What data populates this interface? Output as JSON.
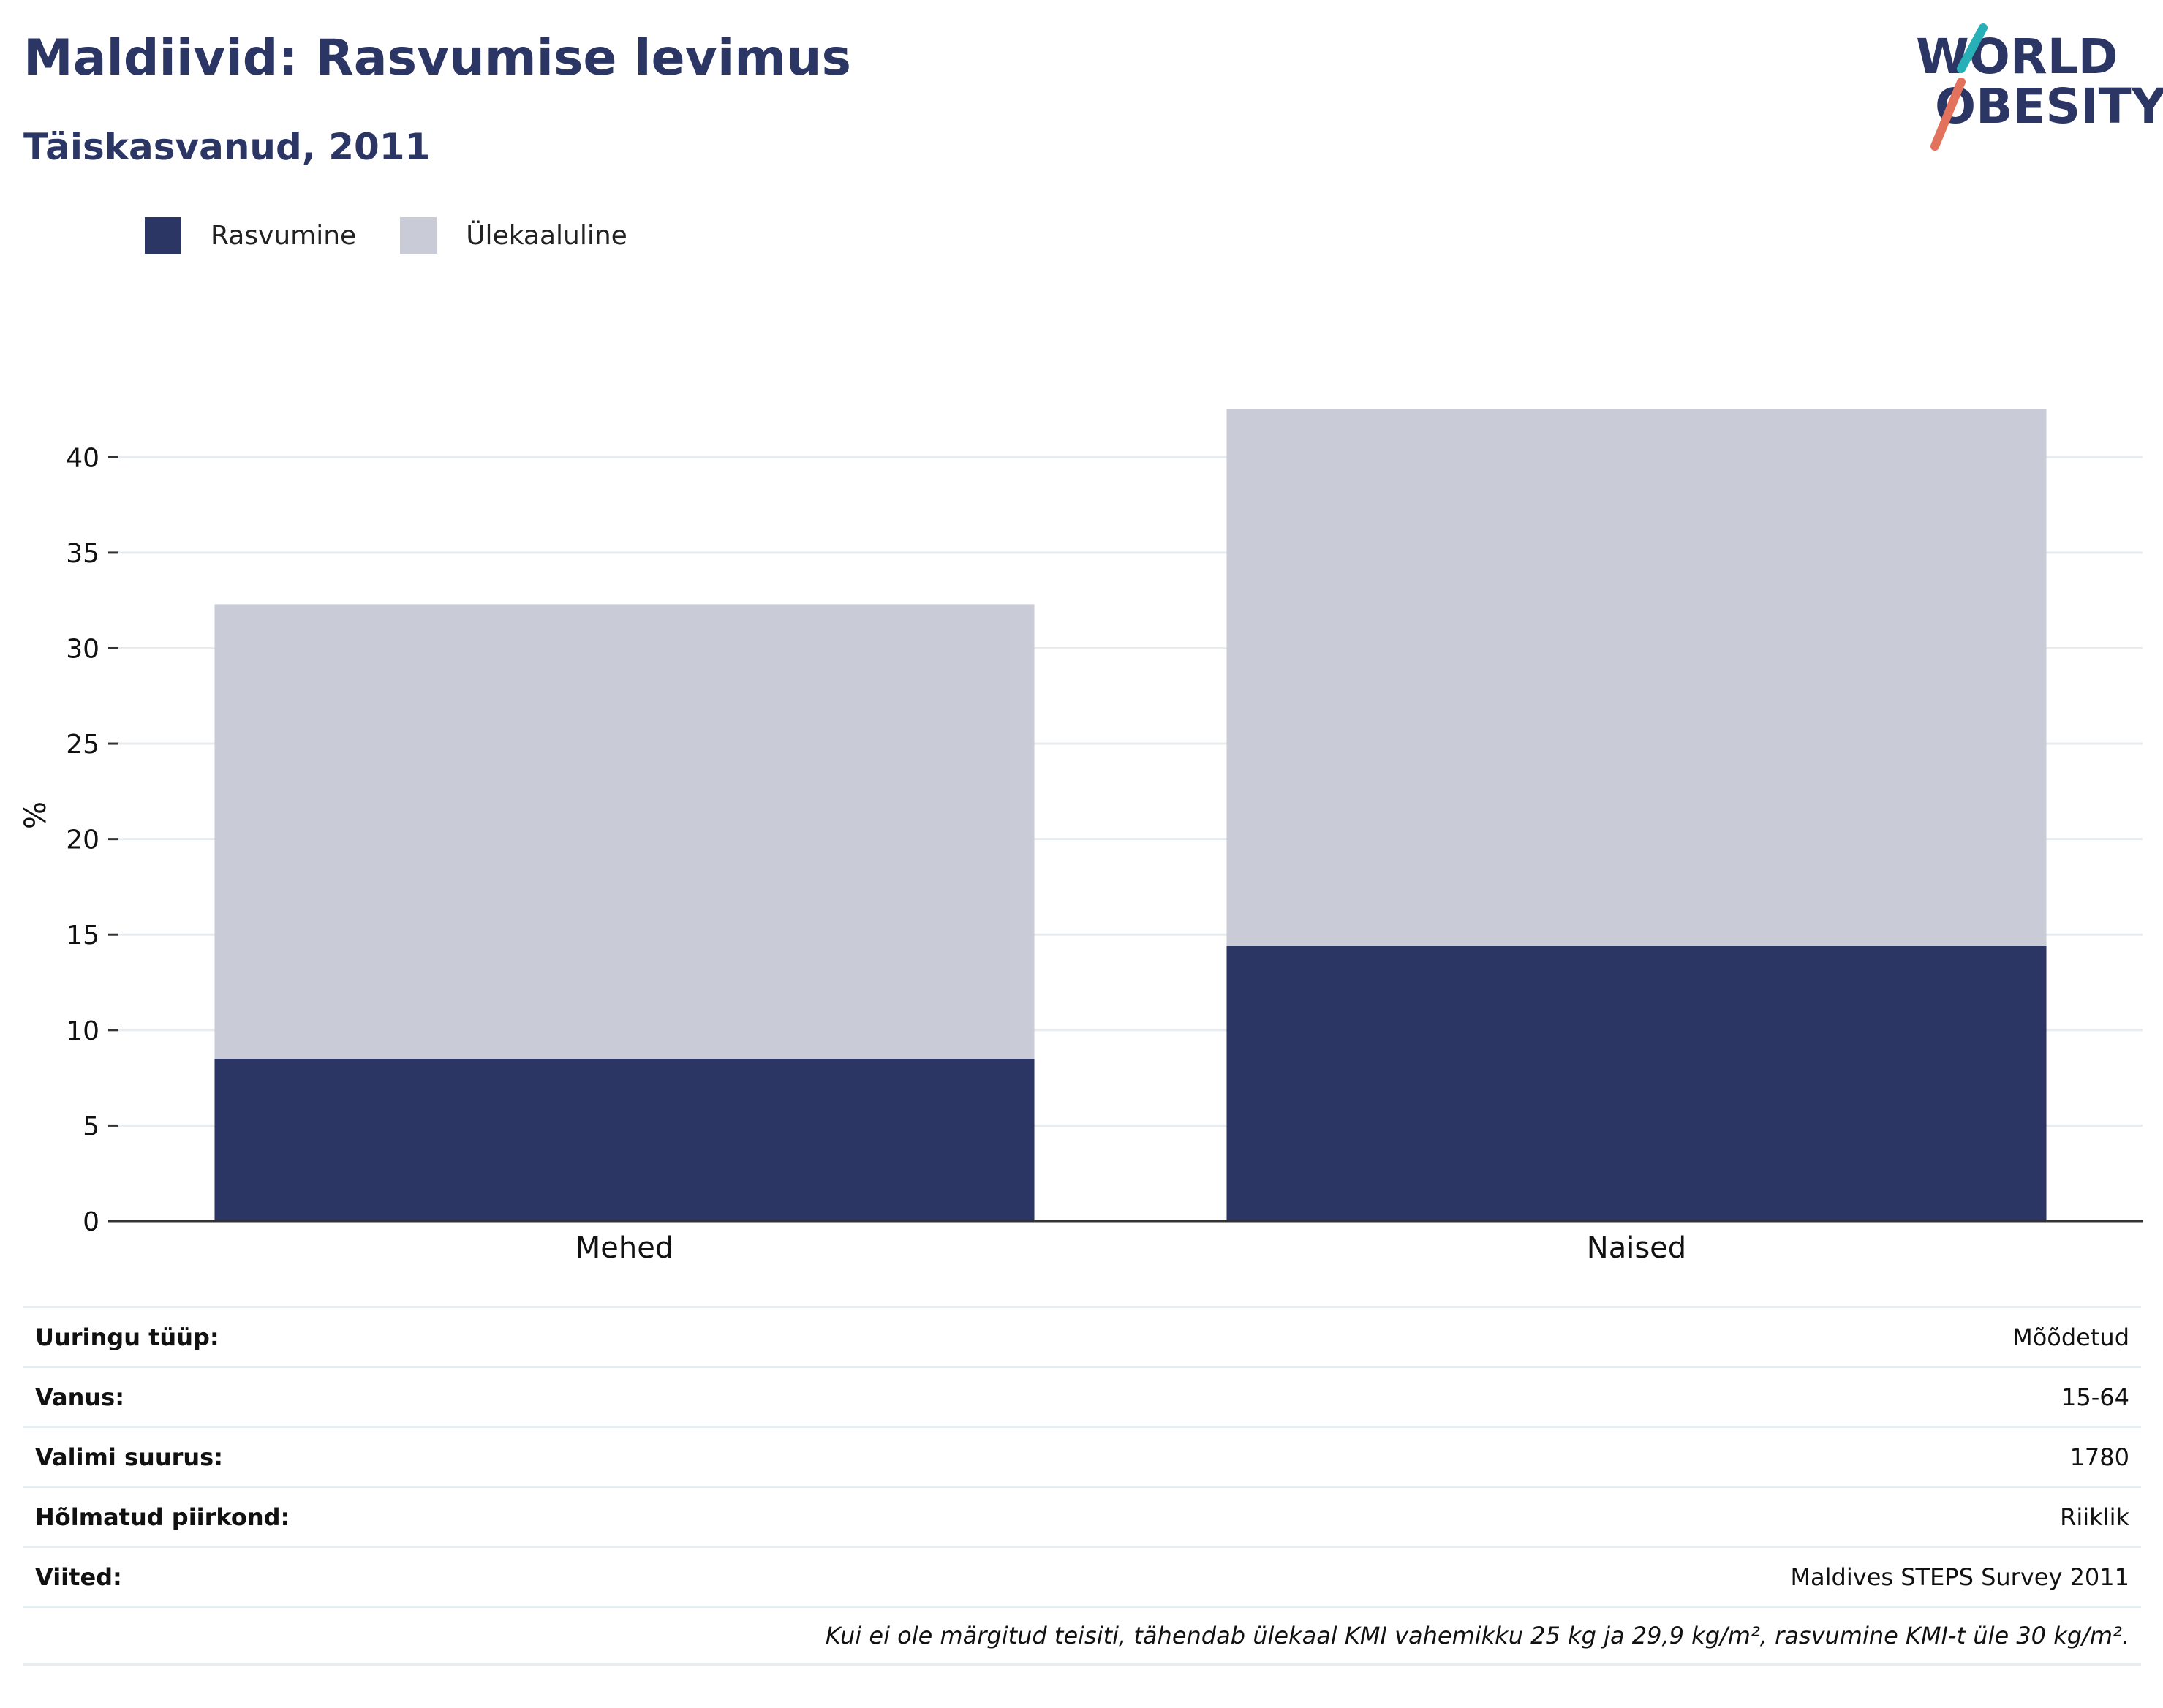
{
  "title": "Maldiivid: Rasvumise levimus",
  "subtitle": "Täiskasvanud, 2011",
  "logo": {
    "line1": "WORLD",
    "line2": "OBESITY"
  },
  "colors": {
    "obesity": "#2b3664",
    "overweight": "#c9cbd7",
    "title": "#2b3664"
  },
  "legend": [
    {
      "label": "Rasvumine",
      "color": "#2b3664"
    },
    {
      "label": "Ülekaaluline",
      "color": "#c9cbd7"
    }
  ],
  "chart_data": {
    "type": "bar",
    "stacked": true,
    "categories": [
      "Mehed",
      "Naised"
    ],
    "series": [
      {
        "name": "Rasvumine",
        "values": [
          8.5,
          14.4
        ]
      },
      {
        "name": "Ülekaaluline",
        "values": [
          23.8,
          28.1
        ]
      }
    ],
    "ylabel": "%",
    "ylim": [
      0,
      42.5
    ],
    "yticks": [
      0,
      5,
      10,
      15,
      20,
      25,
      30,
      35,
      40
    ],
    "grid": true,
    "legend_position": "top-left"
  },
  "table": {
    "rows": [
      {
        "key": "Uuringu tüüp:",
        "value": "Mõõdetud"
      },
      {
        "key": "Vanus:",
        "value": "15-64"
      },
      {
        "key": "Valimi suurus:",
        "value": "1780"
      },
      {
        "key": "Hõlmatud piirkond:",
        "value": "Riiklik"
      },
      {
        "key": "Viited:",
        "value": "Maldives STEPS Survey 2011"
      }
    ],
    "note": "Kui ei ole märgitud teisiti, tähendab ülekaal KMI vahemikku 25 kg ja 29,9 kg/m², rasvumine KMI-t üle 30 kg/m²."
  }
}
